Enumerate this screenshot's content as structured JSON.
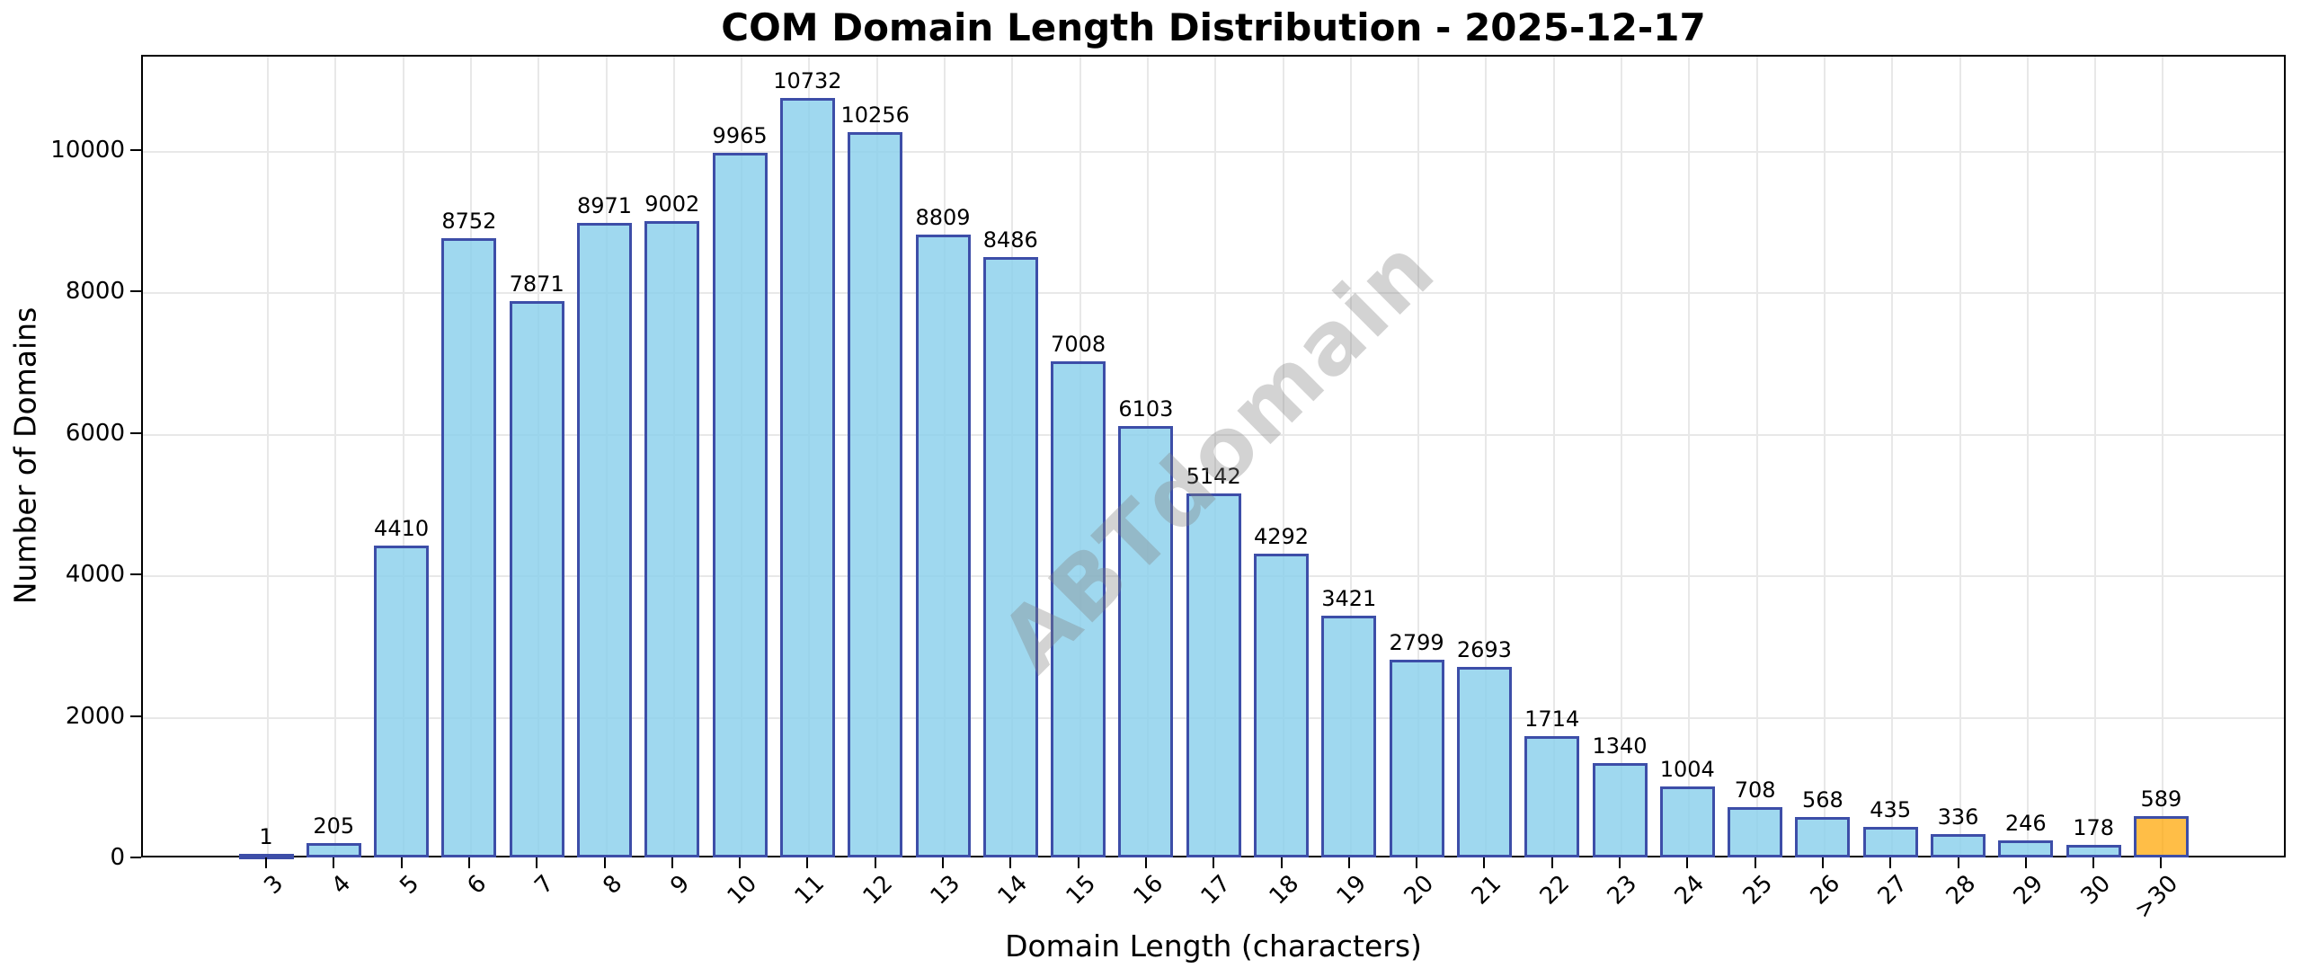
{
  "chart_data": {
    "type": "bar",
    "title": "COM Domain Length Distribution - 2025-12-17",
    "xlabel": "Domain Length (characters)",
    "ylabel": "Number of Domains",
    "categories": [
      "3",
      "4",
      "5",
      "6",
      "7",
      "8",
      "9",
      "10",
      "11",
      "12",
      "13",
      "14",
      "15",
      "16",
      "17",
      "18",
      "19",
      "20",
      "21",
      "22",
      "23",
      "24",
      "25",
      "26",
      "27",
      "28",
      "29",
      "30",
      ">30"
    ],
    "values": [
      1,
      205,
      4410,
      8752,
      7871,
      8971,
      9002,
      9965,
      10732,
      10256,
      8809,
      8486,
      7008,
      6103,
      5142,
      4292,
      3421,
      2799,
      2693,
      1714,
      1340,
      1004,
      708,
      568,
      435,
      336,
      246,
      178,
      589
    ],
    "yticks": [
      0,
      2000,
      4000,
      6000,
      8000,
      10000
    ],
    "ylim": [
      0,
      11347
    ],
    "grid": true,
    "legend": "none",
    "bar_color": "rgba(135,206,235,0.8)",
    "bar_edge_color": "#3d4ea8",
    "highlight_index": 28,
    "highlight_color": "rgba(255,165,0,0.72)",
    "watermark": "ABTdomain"
  }
}
